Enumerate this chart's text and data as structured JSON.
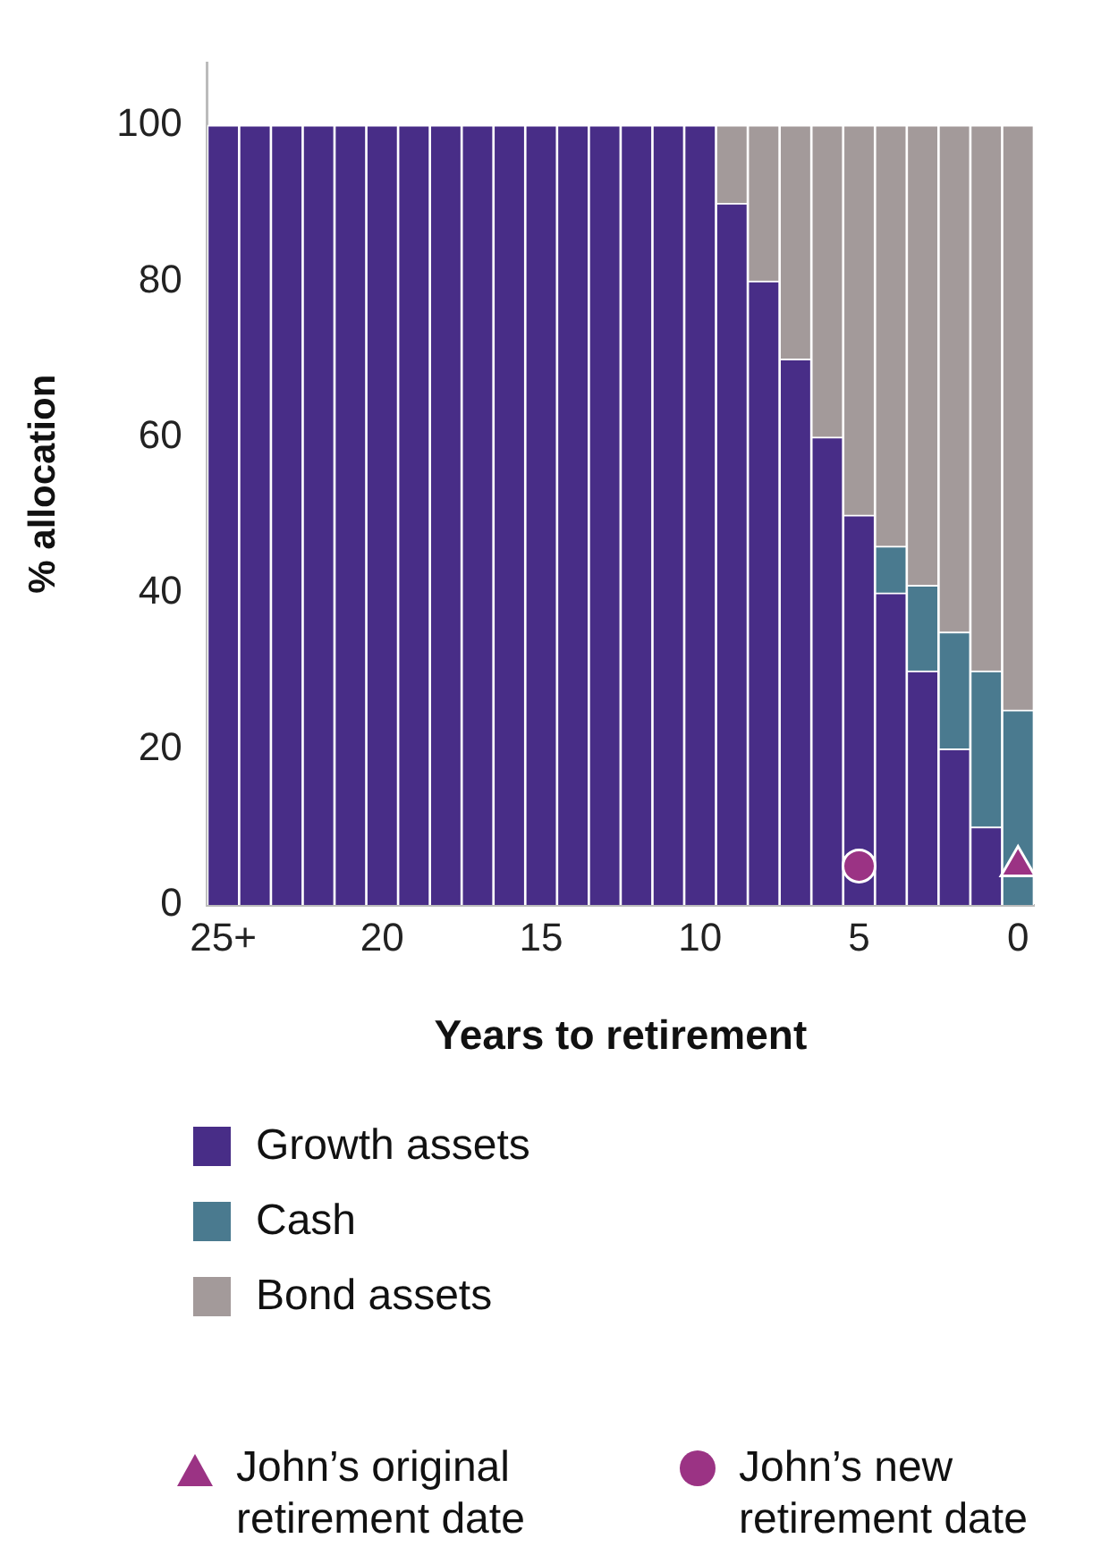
{
  "chart_data": {
    "type": "bar",
    "stacked": true,
    "xlabel": "Years to retirement",
    "ylabel": "% allocation",
    "legend": "bottom",
    "categories": [
      "25+",
      null,
      null,
      null,
      null,
      "20",
      null,
      null,
      null,
      null,
      "15",
      null,
      null,
      null,
      null,
      "10",
      null,
      null,
      null,
      null,
      "5",
      null,
      null,
      null,
      null,
      "0"
    ],
    "ylim": [
      0,
      108
    ],
    "yticks": [
      0,
      20,
      40,
      60,
      80,
      100
    ],
    "series": [
      {
        "name": "Growth assets",
        "color": "#482d87",
        "values": [
          100,
          100,
          100,
          100,
          100,
          100,
          100,
          100,
          100,
          100,
          100,
          100,
          100,
          100,
          100,
          100,
          90,
          80,
          70,
          60,
          50,
          40,
          30,
          20,
          10,
          0
        ]
      },
      {
        "name": "Cash",
        "color": "#4a7a8f",
        "values": [
          0,
          0,
          0,
          0,
          0,
          0,
          0,
          0,
          0,
          0,
          0,
          0,
          0,
          0,
          0,
          0,
          0,
          0,
          0,
          0,
          0,
          6,
          11,
          15,
          20,
          25
        ]
      },
      {
        "name": "Bond assets",
        "color": "#a39a9a",
        "values": [
          0,
          0,
          0,
          0,
          0,
          0,
          0,
          0,
          0,
          0,
          0,
          0,
          0,
          0,
          0,
          0,
          10,
          20,
          30,
          40,
          50,
          54,
          59,
          65,
          70,
          75
        ]
      },
      {
        "name": "John’s original retirement date",
        "type": "scatter",
        "marker": "triangle",
        "color": "#9b3384",
        "x": [
          "0"
        ],
        "values": [
          5
        ]
      },
      {
        "name": "John’s new retirement date",
        "type": "scatter",
        "marker": "circle",
        "color": "#9b3384",
        "x": [
          "5"
        ],
        "values": [
          5
        ]
      }
    ]
  }
}
